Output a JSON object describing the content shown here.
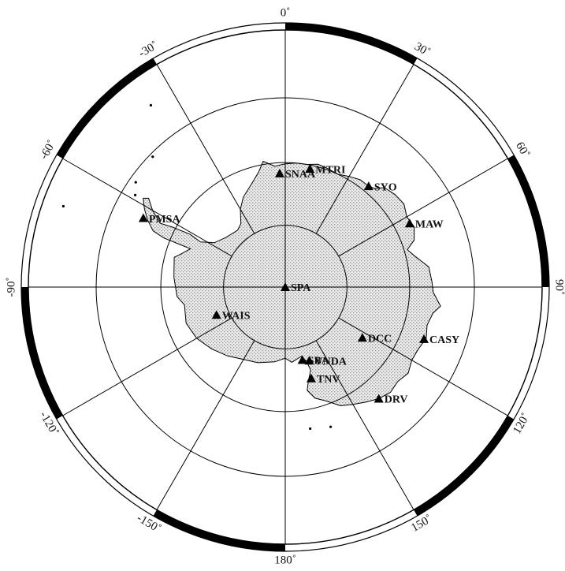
{
  "map": {
    "projection": "south polar stereographic",
    "longitude_labels": [
      {
        "lon": 0,
        "text": "0˚"
      },
      {
        "lon": 30,
        "text": "30˚"
      },
      {
        "lon": 60,
        "text": "60˚"
      },
      {
        "lon": 90,
        "text": "90˚"
      },
      {
        "lon": 120,
        "text": "120˚"
      },
      {
        "lon": 150,
        "text": "150˚"
      },
      {
        "lon": 180,
        "text": "180˚"
      },
      {
        "lon": -150,
        "text": "-150˚"
      },
      {
        "lon": -120,
        "text": "-120˚"
      },
      {
        "lon": -90,
        "text": "-90˚"
      },
      {
        "lon": -60,
        "text": "-60˚"
      },
      {
        "lon": -30,
        "text": "-30˚"
      }
    ],
    "latitude_circles": [
      -80,
      -70,
      -60,
      -50
    ],
    "stations": [
      {
        "code": "SNAA",
        "lat": -71.7,
        "lon": -2.8
      },
      {
        "code": "MTRI",
        "lat": -70.6,
        "lon": 11.8
      },
      {
        "code": "SYO",
        "lat": -69.0,
        "lon": 39.6
      },
      {
        "code": "MAW",
        "lat": -67.6,
        "lon": 62.9
      },
      {
        "code": "PMSA",
        "lat": -64.8,
        "lon": -64.1
      },
      {
        "code": "SPA",
        "lat": -90.0,
        "lon": 0.0
      },
      {
        "code": "WAIS",
        "lat": -78.0,
        "lon": -112.0
      },
      {
        "code": "DCC",
        "lat": -75.1,
        "lon": 123.3
      },
      {
        "code": "CASY",
        "lat": -66.3,
        "lon": 110.5
      },
      {
        "code": "SBA",
        "lat": -77.9,
        "lon": 166.8
      },
      {
        "code": "VNDA",
        "lat": -77.5,
        "lon": 161.9
      },
      {
        "code": "TNV",
        "lat": -74.7,
        "lon": 164.1
      },
      {
        "code": "DRV",
        "lat": -66.7,
        "lon": 140.0
      }
    ]
  }
}
